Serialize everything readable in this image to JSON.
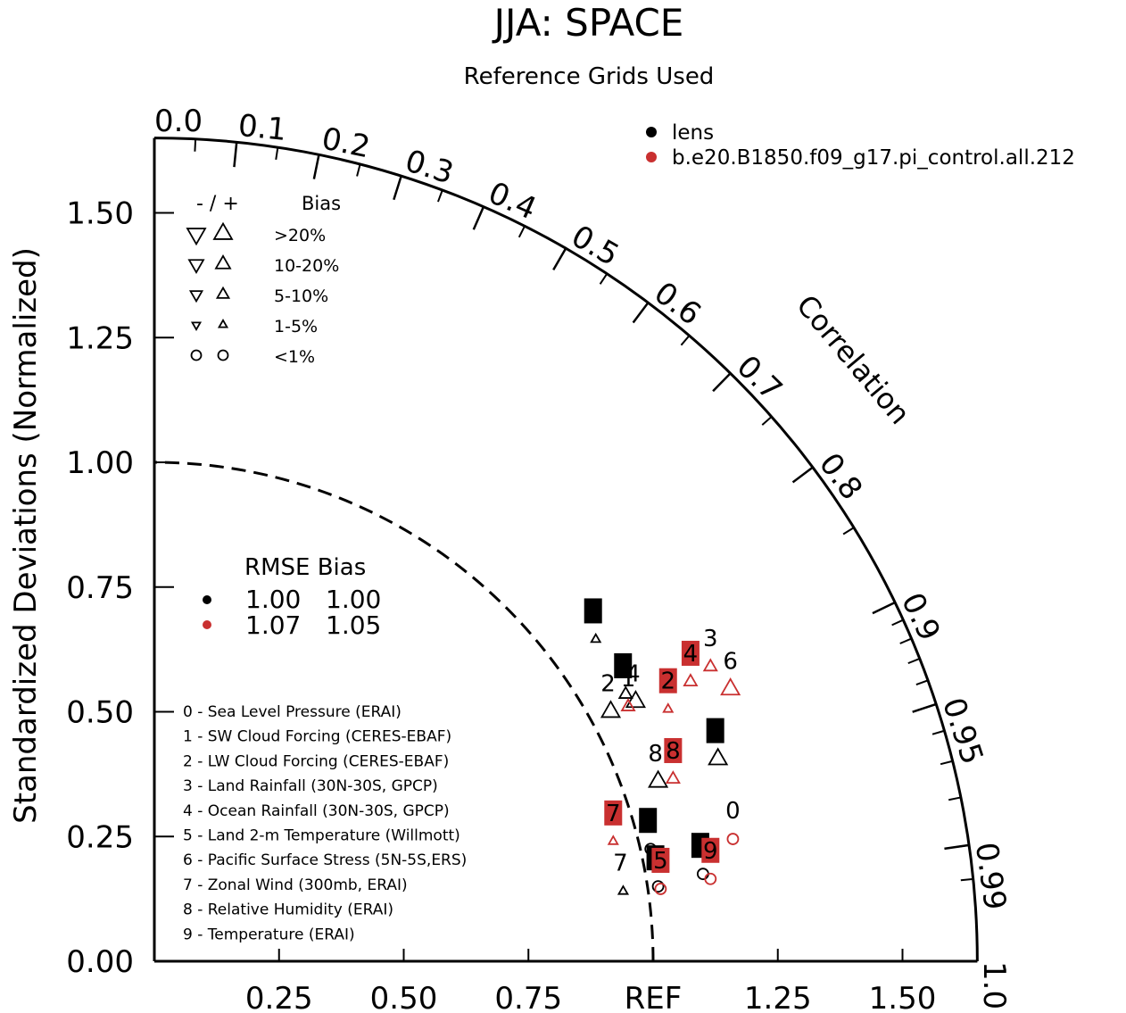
{
  "chart_data": {
    "type": "scatter",
    "subtype": "taylor-diagram",
    "title": "JJA: SPACE",
    "subtitle": "Reference Grids Used",
    "ylabel": "Standardized Deviations (Normalized)",
    "arc_label": "Correlation",
    "ref_label": "REF",
    "x_ticks": [
      "0.25",
      "0.50",
      "0.75",
      "1.25",
      "1.50"
    ],
    "y_ticks": [
      "0.00",
      "0.25",
      "0.50",
      "0.75",
      "1.00",
      "1.25",
      "1.50"
    ],
    "corr_ticks": [
      "0.0",
      "0.1",
      "0.2",
      "0.3",
      "0.4",
      "0.5",
      "0.6",
      "0.7",
      "0.8",
      "0.9",
      "0.95",
      "0.99",
      "1.0"
    ],
    "xlim": [
      0,
      1.65
    ],
    "ylim": [
      0,
      1.65
    ],
    "colors": {
      "lens": "#000000",
      "b.e20.B1850.f09_g17.pi_control.all.212": "#c93030"
    },
    "series": [
      {
        "name": "lens",
        "color": "#000000",
        "rmse": "1.00",
        "bias": "1.00",
        "points": [
          {
            "label": "0",
            "boxed": true,
            "marker": "circle",
            "x": 0.995,
            "y": 0.225
          },
          {
            "label": "1",
            "boxed": true,
            "marker": "tri-up-md",
            "x": 0.945,
            "y": 0.535
          },
          {
            "label": "2",
            "boxed": false,
            "marker": "tri-up-lg",
            "x": 0.915,
            "y": 0.5
          },
          {
            "label": "3",
            "boxed": true,
            "marker": "tri-up-sm",
            "x": 0.885,
            "y": 0.645
          },
          {
            "label": "4",
            "boxed": false,
            "marker": "tri-up-lg",
            "x": 0.965,
            "y": 0.52
          },
          {
            "label": "5",
            "boxed": true,
            "marker": "circle",
            "x": 1.01,
            "y": 0.15
          },
          {
            "label": "6",
            "boxed": true,
            "marker": "tri-up-lg",
            "x": 1.13,
            "y": 0.405
          },
          {
            "label": "7",
            "boxed": false,
            "marker": "tri-up-sm",
            "x": 0.94,
            "y": 0.14
          },
          {
            "label": "8",
            "boxed": false,
            "marker": "tri-up-lg",
            "x": 1.01,
            "y": 0.36
          },
          {
            "label": "9",
            "boxed": true,
            "marker": "circle",
            "x": 1.1,
            "y": 0.175
          }
        ]
      },
      {
        "name": "b.e20.B1850.f09_g17.pi_control.all.212",
        "color": "#c93030",
        "rmse": "1.07",
        "bias": "1.05",
        "points": [
          {
            "label": "0",
            "boxed": false,
            "marker": "circle",
            "x": 1.16,
            "y": 0.245
          },
          {
            "label": "1",
            "boxed": false,
            "marker": "tri-up-md",
            "x": 0.95,
            "y": 0.51
          },
          {
            "label": "2",
            "boxed": true,
            "marker": "tri-up-sm",
            "x": 1.03,
            "y": 0.505
          },
          {
            "label": "3",
            "boxed": false,
            "marker": "tri-up-md",
            "x": 1.115,
            "y": 0.59
          },
          {
            "label": "4",
            "boxed": true,
            "marker": "tri-up-md",
            "x": 1.075,
            "y": 0.56
          },
          {
            "label": "5",
            "boxed": true,
            "marker": "circle",
            "x": 1.015,
            "y": 0.145
          },
          {
            "label": "6",
            "boxed": false,
            "marker": "tri-up-lg",
            "x": 1.155,
            "y": 0.545
          },
          {
            "label": "7",
            "boxed": true,
            "marker": "tri-up-sm",
            "x": 0.92,
            "y": 0.24
          },
          {
            "label": "8",
            "boxed": true,
            "marker": "tri-up-md",
            "x": 1.04,
            "y": 0.365
          },
          {
            "label": "9",
            "boxed": true,
            "marker": "circle",
            "x": 1.115,
            "y": 0.165
          }
        ]
      }
    ],
    "variables": [
      "0 - Sea Level Pressure (ERAI)",
      "1 - SW Cloud Forcing (CERES-EBAF)",
      "2 - LW Cloud Forcing (CERES-EBAF)",
      "3 - Land Rainfall (30N-30S, GPCP)",
      "4 - Ocean Rainfall (30N-30S, GPCP)",
      "5 - Land 2-m Temperature (Willmott)",
      "6 - Pacific Surface Stress (5N-5S,ERS)",
      "7 - Zonal Wind (300mb, ERAI)",
      "8 - Relative Humidity (ERAI)",
      "9 - Temperature (ERAI)"
    ],
    "bias_legend": {
      "header_sign": "- / +",
      "header_label": "Bias",
      "rows": [
        ">20%",
        "10-20%",
        "5-10%",
        "1-5%",
        "<1%"
      ]
    },
    "rmse_legend": {
      "header": "RMSE Bias"
    }
  }
}
